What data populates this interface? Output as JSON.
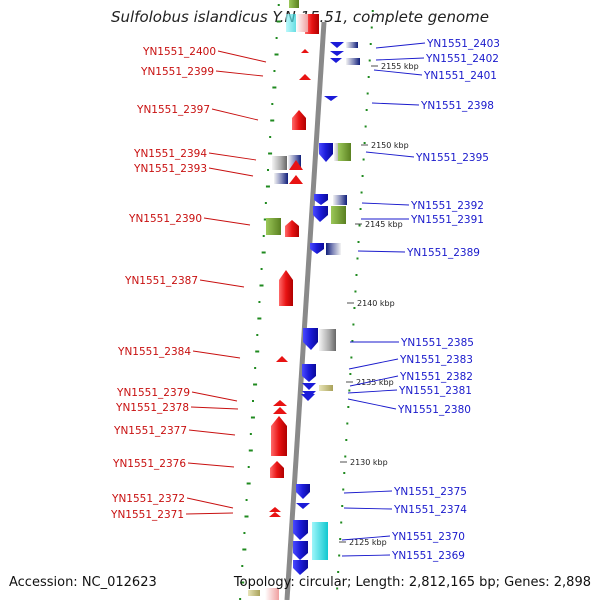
{
  "title": "Sulfolobus islandicus Y.N.15.51, complete genome",
  "accession": "Accession: NC_012623",
  "topology": "Topology: circular; Length: 2,812,165 bp; Genes: 2,898",
  "colors": {
    "forward_gene": "#e81313",
    "reverse_gene": "#1b1bd8",
    "green_feature": "#6e9a2c",
    "cyan_feature": "#22e0e8",
    "tick": "#1f8a1f",
    "backbone": "#8a8a8a",
    "label_left": "#c81010",
    "label_right": "#1a1acc"
  },
  "kbp_marks": [
    "2155 kbp",
    "2150 kbp",
    "2145 kbp",
    "2140 kbp",
    "2135 kbp",
    "2130 kbp",
    "2125 kbp"
  ],
  "left_labels": [
    "YN1551_2400",
    "YN1551_2399",
    "YN1551_2397",
    "YN1551_2394",
    "YN1551_2393",
    "YN1551_2390",
    "YN1551_2387",
    "YN1551_2384",
    "YN1551_2379",
    "YN1551_2378",
    "YN1551_2377",
    "YN1551_2376",
    "YN1551_2372",
    "YN1551_2371"
  ],
  "right_labels": [
    "YN1551_2403",
    "YN1551_2402",
    "YN1551_2401",
    "YN1551_2398",
    "YN1551_2395",
    "YN1551_2392",
    "YN1551_2391",
    "YN1551_2389",
    "YN1551_2385",
    "YN1551_2383",
    "YN1551_2382",
    "YN1551_2381",
    "YN1551_2380",
    "YN1551_2375",
    "YN1551_2374",
    "YN1551_2370",
    "YN1551_2369"
  ]
}
